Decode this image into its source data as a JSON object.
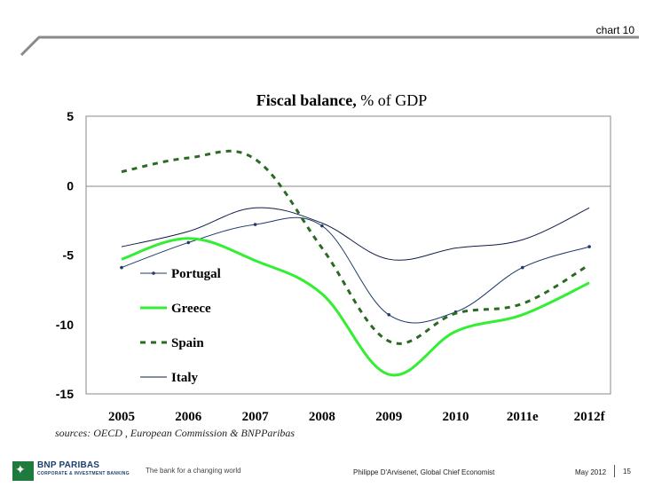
{
  "header": {
    "chart_number": "chart 10"
  },
  "chart_data": {
    "type": "line",
    "title": "Fiscal balance, % of GDP",
    "title_main": "Fiscal balance,",
    "title_rest": " % of GDP",
    "categories": [
      "2005",
      "2006",
      "2007",
      "2008",
      "2009",
      "2010",
      "2011e",
      "2012f"
    ],
    "y_ticks": [
      "5",
      "0",
      "-5",
      "-10",
      "-15"
    ],
    "ylim": [
      -15,
      5
    ],
    "grid": false,
    "legend_position": "left-inside",
    "series": [
      {
        "name": "Portugal",
        "values": [
          -5.9,
          -4.1,
          -2.8,
          -2.9,
          -9.3,
          -9.1,
          -5.9,
          -4.4
        ],
        "color": "#1f3a6b",
        "style": "thin-with-markers"
      },
      {
        "name": "Greece",
        "values": [
          -5.3,
          -3.8,
          -5.4,
          -7.8,
          -13.6,
          -10.5,
          -9.3,
          -7.0
        ],
        "color": "#33ee33",
        "style": "thick-solid"
      },
      {
        "name": "Spain",
        "values": [
          1.0,
          2.0,
          1.9,
          -4.5,
          -11.2,
          -9.2,
          -8.5,
          -5.7
        ],
        "color": "#2a6a22",
        "style": "dashed"
      },
      {
        "name": "Italy",
        "values": [
          -4.4,
          -3.3,
          -1.6,
          -2.7,
          -5.3,
          -4.5,
          -3.9,
          -1.6
        ],
        "color": "#111c44",
        "style": "thin-solid"
      }
    ]
  },
  "source": "sources: OECD , European Commission & BNPParibas",
  "footer": {
    "brand": "BNP PARIBAS",
    "brand_sub": "CORPORATE & INVESTMENT BANKING",
    "tagline": "The bank for a changing world",
    "author": "Philippe D'Arvisenet, Global Chief Economist",
    "date": "May 2012",
    "page": "15"
  }
}
